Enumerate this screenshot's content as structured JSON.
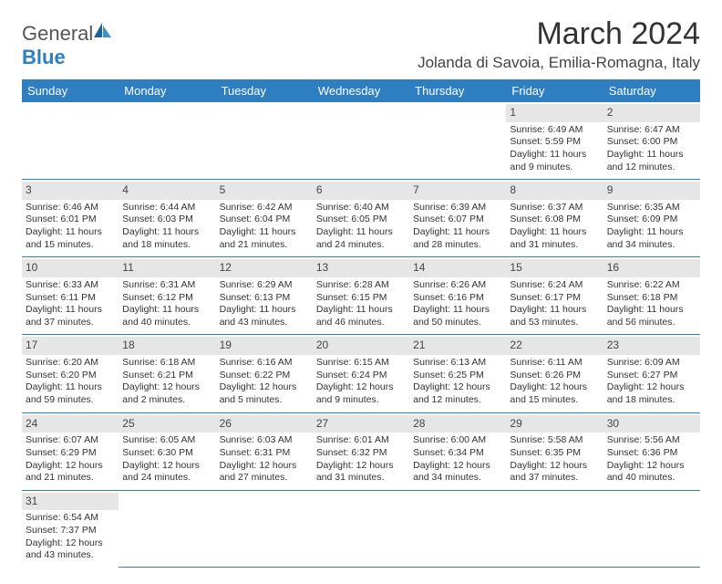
{
  "logo": {
    "text1": "General",
    "text2": "Blue"
  },
  "title": "March 2024",
  "location": "Jolanda di Savoia, Emilia-Romagna, Italy",
  "colors": {
    "header_bg": "#2e7fc1",
    "header_text": "#ffffff",
    "daynum_bg": "#e6e6e6",
    "border": "#2e7fc1",
    "text": "#333333"
  },
  "weekdays": [
    "Sunday",
    "Monday",
    "Tuesday",
    "Wednesday",
    "Thursday",
    "Friday",
    "Saturday"
  ],
  "weeks": [
    [
      null,
      null,
      null,
      null,
      null,
      {
        "n": "1",
        "sr": "Sunrise: 6:49 AM",
        "ss": "Sunset: 5:59 PM",
        "dl": "Daylight: 11 hours and 9 minutes."
      },
      {
        "n": "2",
        "sr": "Sunrise: 6:47 AM",
        "ss": "Sunset: 6:00 PM",
        "dl": "Daylight: 11 hours and 12 minutes."
      }
    ],
    [
      {
        "n": "3",
        "sr": "Sunrise: 6:46 AM",
        "ss": "Sunset: 6:01 PM",
        "dl": "Daylight: 11 hours and 15 minutes."
      },
      {
        "n": "4",
        "sr": "Sunrise: 6:44 AM",
        "ss": "Sunset: 6:03 PM",
        "dl": "Daylight: 11 hours and 18 minutes."
      },
      {
        "n": "5",
        "sr": "Sunrise: 6:42 AM",
        "ss": "Sunset: 6:04 PM",
        "dl": "Daylight: 11 hours and 21 minutes."
      },
      {
        "n": "6",
        "sr": "Sunrise: 6:40 AM",
        "ss": "Sunset: 6:05 PM",
        "dl": "Daylight: 11 hours and 24 minutes."
      },
      {
        "n": "7",
        "sr": "Sunrise: 6:39 AM",
        "ss": "Sunset: 6:07 PM",
        "dl": "Daylight: 11 hours and 28 minutes."
      },
      {
        "n": "8",
        "sr": "Sunrise: 6:37 AM",
        "ss": "Sunset: 6:08 PM",
        "dl": "Daylight: 11 hours and 31 minutes."
      },
      {
        "n": "9",
        "sr": "Sunrise: 6:35 AM",
        "ss": "Sunset: 6:09 PM",
        "dl": "Daylight: 11 hours and 34 minutes."
      }
    ],
    [
      {
        "n": "10",
        "sr": "Sunrise: 6:33 AM",
        "ss": "Sunset: 6:11 PM",
        "dl": "Daylight: 11 hours and 37 minutes."
      },
      {
        "n": "11",
        "sr": "Sunrise: 6:31 AM",
        "ss": "Sunset: 6:12 PM",
        "dl": "Daylight: 11 hours and 40 minutes."
      },
      {
        "n": "12",
        "sr": "Sunrise: 6:29 AM",
        "ss": "Sunset: 6:13 PM",
        "dl": "Daylight: 11 hours and 43 minutes."
      },
      {
        "n": "13",
        "sr": "Sunrise: 6:28 AM",
        "ss": "Sunset: 6:15 PM",
        "dl": "Daylight: 11 hours and 46 minutes."
      },
      {
        "n": "14",
        "sr": "Sunrise: 6:26 AM",
        "ss": "Sunset: 6:16 PM",
        "dl": "Daylight: 11 hours and 50 minutes."
      },
      {
        "n": "15",
        "sr": "Sunrise: 6:24 AM",
        "ss": "Sunset: 6:17 PM",
        "dl": "Daylight: 11 hours and 53 minutes."
      },
      {
        "n": "16",
        "sr": "Sunrise: 6:22 AM",
        "ss": "Sunset: 6:18 PM",
        "dl": "Daylight: 11 hours and 56 minutes."
      }
    ],
    [
      {
        "n": "17",
        "sr": "Sunrise: 6:20 AM",
        "ss": "Sunset: 6:20 PM",
        "dl": "Daylight: 11 hours and 59 minutes."
      },
      {
        "n": "18",
        "sr": "Sunrise: 6:18 AM",
        "ss": "Sunset: 6:21 PM",
        "dl": "Daylight: 12 hours and 2 minutes."
      },
      {
        "n": "19",
        "sr": "Sunrise: 6:16 AM",
        "ss": "Sunset: 6:22 PM",
        "dl": "Daylight: 12 hours and 5 minutes."
      },
      {
        "n": "20",
        "sr": "Sunrise: 6:15 AM",
        "ss": "Sunset: 6:24 PM",
        "dl": "Daylight: 12 hours and 9 minutes."
      },
      {
        "n": "21",
        "sr": "Sunrise: 6:13 AM",
        "ss": "Sunset: 6:25 PM",
        "dl": "Daylight: 12 hours and 12 minutes."
      },
      {
        "n": "22",
        "sr": "Sunrise: 6:11 AM",
        "ss": "Sunset: 6:26 PM",
        "dl": "Daylight: 12 hours and 15 minutes."
      },
      {
        "n": "23",
        "sr": "Sunrise: 6:09 AM",
        "ss": "Sunset: 6:27 PM",
        "dl": "Daylight: 12 hours and 18 minutes."
      }
    ],
    [
      {
        "n": "24",
        "sr": "Sunrise: 6:07 AM",
        "ss": "Sunset: 6:29 PM",
        "dl": "Daylight: 12 hours and 21 minutes."
      },
      {
        "n": "25",
        "sr": "Sunrise: 6:05 AM",
        "ss": "Sunset: 6:30 PM",
        "dl": "Daylight: 12 hours and 24 minutes."
      },
      {
        "n": "26",
        "sr": "Sunrise: 6:03 AM",
        "ss": "Sunset: 6:31 PM",
        "dl": "Daylight: 12 hours and 27 minutes."
      },
      {
        "n": "27",
        "sr": "Sunrise: 6:01 AM",
        "ss": "Sunset: 6:32 PM",
        "dl": "Daylight: 12 hours and 31 minutes."
      },
      {
        "n": "28",
        "sr": "Sunrise: 6:00 AM",
        "ss": "Sunset: 6:34 PM",
        "dl": "Daylight: 12 hours and 34 minutes."
      },
      {
        "n": "29",
        "sr": "Sunrise: 5:58 AM",
        "ss": "Sunset: 6:35 PM",
        "dl": "Daylight: 12 hours and 37 minutes."
      },
      {
        "n": "30",
        "sr": "Sunrise: 5:56 AM",
        "ss": "Sunset: 6:36 PM",
        "dl": "Daylight: 12 hours and 40 minutes."
      }
    ],
    [
      {
        "n": "31",
        "sr": "Sunrise: 6:54 AM",
        "ss": "Sunset: 7:37 PM",
        "dl": "Daylight: 12 hours and 43 minutes."
      },
      null,
      null,
      null,
      null,
      null,
      null
    ]
  ]
}
